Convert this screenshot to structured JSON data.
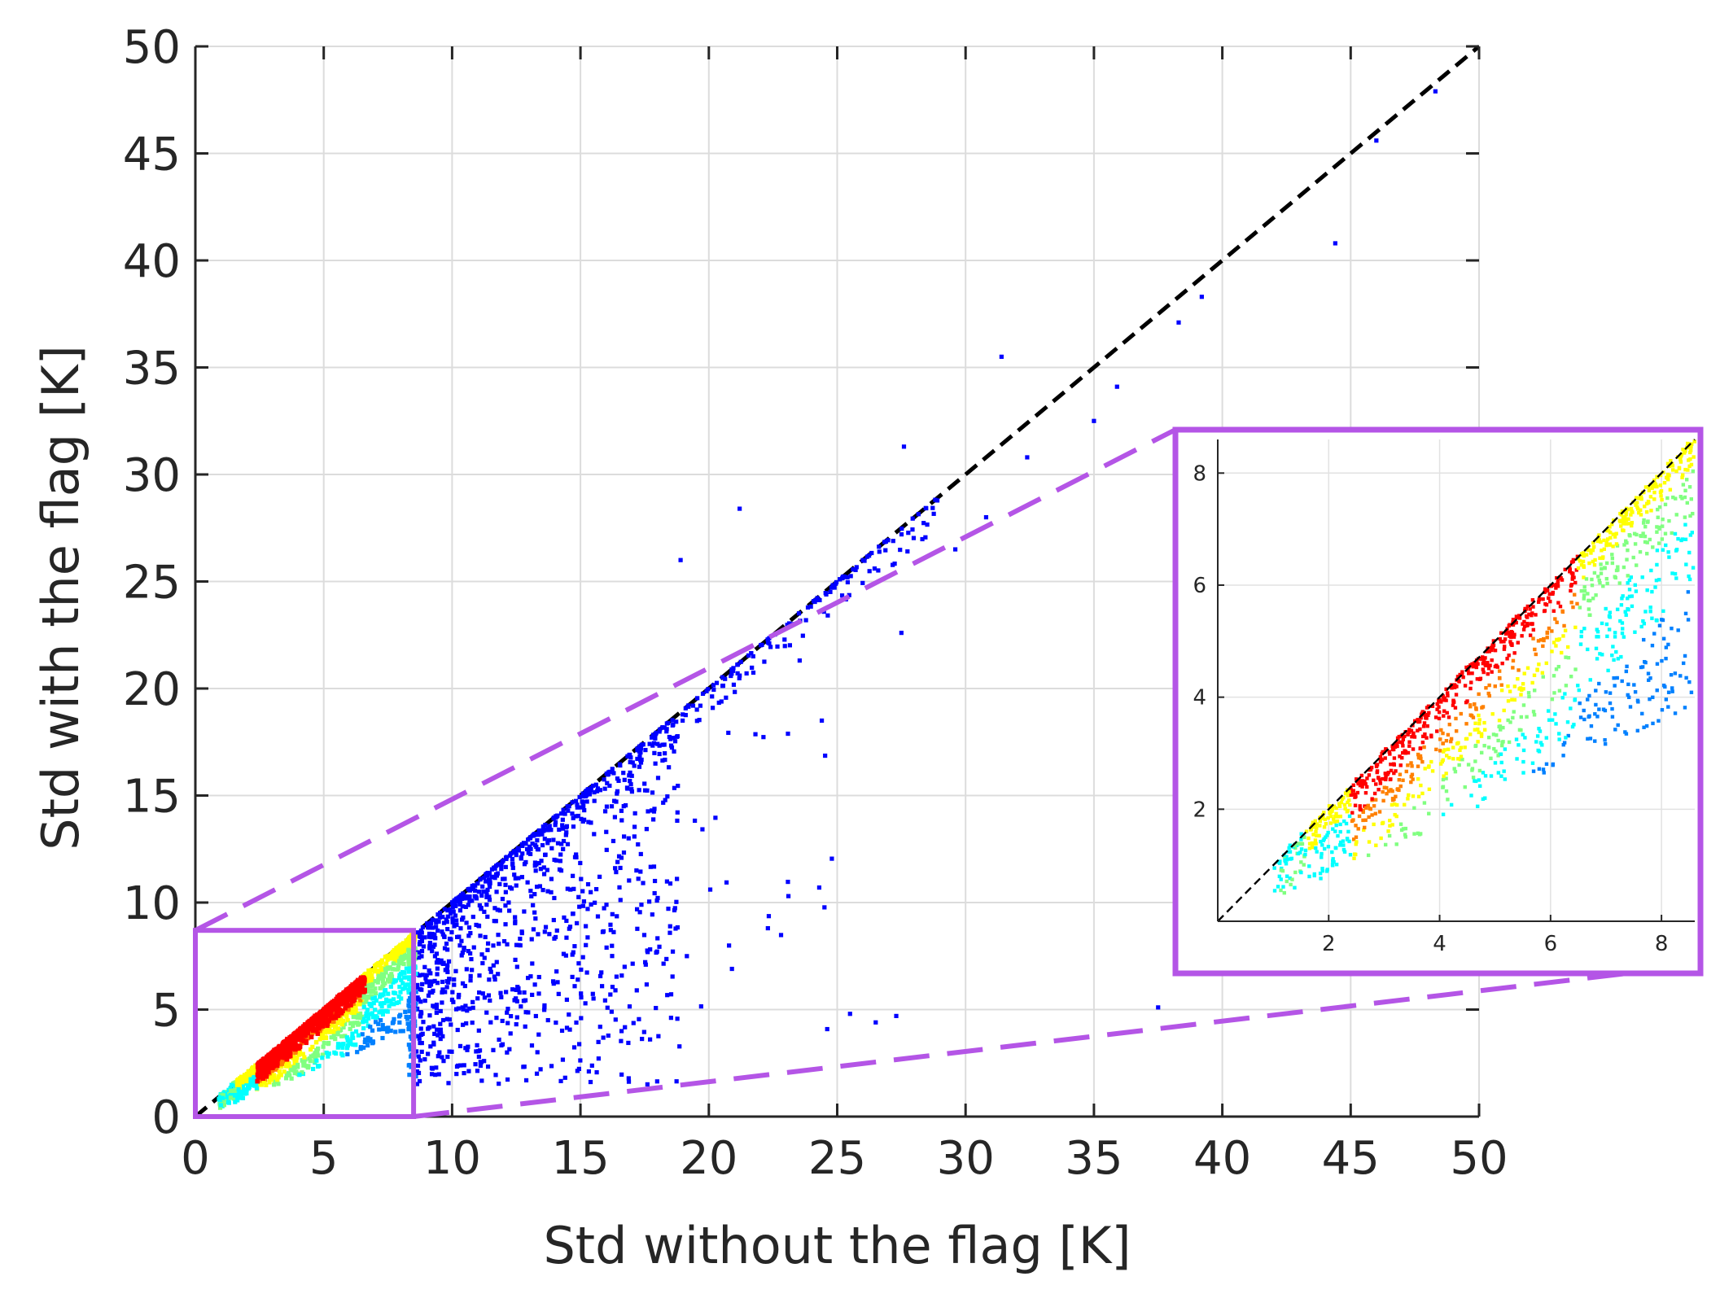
{
  "chart_data": {
    "type": "scatter",
    "title": "",
    "xlabel": "Std without the flag [K]",
    "ylabel": "Std with the flag [K]",
    "xlim": [
      0,
      50
    ],
    "ylim": [
      0,
      50
    ],
    "xticks": [
      "0",
      "5",
      "10",
      "15",
      "20",
      "25",
      "30",
      "35",
      "40",
      "45",
      "50"
    ],
    "yticks": [
      "0",
      "5",
      "10",
      "15",
      "20",
      "25",
      "30",
      "35",
      "40",
      "45",
      "50"
    ],
    "grid": true,
    "reference_line": {
      "style": "dashed",
      "color": "#000000",
      "from": [
        0,
        0
      ],
      "to": [
        50,
        50
      ]
    },
    "color_encoding": "point density (jet colormap: blue = low, red = high)",
    "colormap": [
      "#00008f",
      "#0000ff",
      "#0080ff",
      "#00ffff",
      "#80ff80",
      "#ffff00",
      "#ff8000",
      "#ff0000",
      "#800000"
    ],
    "zoom_box": {
      "xlim": [
        0,
        8.5
      ],
      "ylim": [
        0,
        8.7
      ],
      "color": "#b455e6"
    },
    "inset": {
      "xlim": [
        0,
        8.6
      ],
      "ylim": [
        0,
        8.6
      ],
      "xticks": [
        "2",
        "4",
        "6",
        "8"
      ],
      "yticks": [
        "2",
        "4",
        "6",
        "8"
      ],
      "grid": true,
      "border_color": "#b455e6"
    },
    "sample_points": [
      {
        "x": 31.4,
        "y": 35.5
      },
      {
        "x": 21.2,
        "y": 28.4
      },
      {
        "x": 18.9,
        "y": 26.0
      },
      {
        "x": 27.6,
        "y": 31.3
      },
      {
        "x": 44.4,
        "y": 40.8
      },
      {
        "x": 46.0,
        "y": 45.6
      },
      {
        "x": 48.3,
        "y": 47.9
      },
      {
        "x": 35.9,
        "y": 34.1
      },
      {
        "x": 35.0,
        "y": 32.5
      },
      {
        "x": 39.2,
        "y": 38.3
      },
      {
        "x": 37.5,
        "y": 5.1
      },
      {
        "x": 25.5,
        "y": 4.8
      },
      {
        "x": 27.3,
        "y": 4.7
      },
      {
        "x": 26.5,
        "y": 4.4
      },
      {
        "x": 24.3,
        "y": 10.7
      },
      {
        "x": 23.1,
        "y": 10.3
      },
      {
        "x": 22.3,
        "y": 8.8
      },
      {
        "x": 20.9,
        "y": 6.9
      },
      {
        "x": 24.4,
        "y": 18.5
      },
      {
        "x": 27.5,
        "y": 22.6
      },
      {
        "x": 30.8,
        "y": 28.0
      },
      {
        "x": 29.6,
        "y": 26.5
      },
      {
        "x": 32.4,
        "y": 30.8
      },
      {
        "x": 38.3,
        "y": 37.1
      }
    ]
  }
}
